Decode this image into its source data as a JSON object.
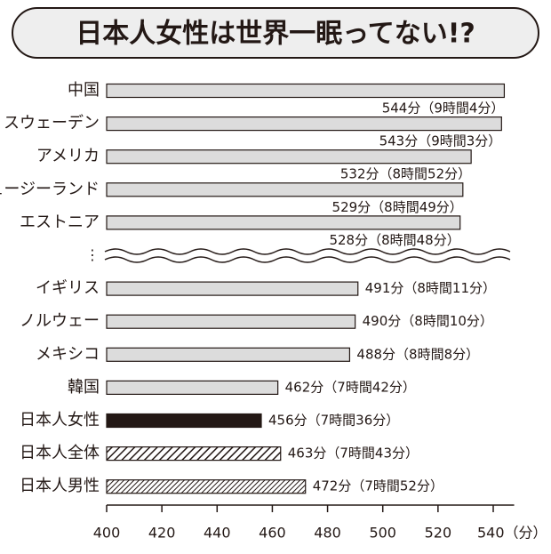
{
  "chart_data": {
    "type": "hbar",
    "title": "日本人女性は世界一眠ってない!?",
    "categories": [
      "中国",
      "スウェーデン",
      "アメリカ",
      "ニュージーランド",
      "エストニア",
      "⋮",
      "イギリス",
      "ノルウェー",
      "メキシコ",
      "韓国",
      "日本人女性",
      "日本人全体",
      "日本人男性"
    ],
    "values": [
      544,
      543,
      532,
      529,
      528,
      null,
      491,
      490,
      488,
      462,
      456,
      463,
      472
    ],
    "value_labels": [
      "544分（9時間4分）",
      "543分（9時間3分）",
      "532分（8時間52分）",
      "529分（8時間49分）",
      "528分（8時間48分）",
      null,
      "491分（8時間11分）",
      "490分（8時間10分）",
      "488分（8時間8分）",
      "462分（7時間42分）",
      "456分（7時間36分）",
      "463分（7時間43分）",
      "472分（7時間52分）"
    ],
    "colors": [
      "#dcdcdc",
      "#dcdcdc",
      "#dcdcdc",
      "#dcdcdc",
      "#dcdcdc",
      null,
      "#dcdcdc",
      "#dcdcdc",
      "#dcdcdc",
      "#dcdcdc",
      "#231815",
      "hatch-wide",
      "hatch-narrow"
    ],
    "xlim": [
      400,
      545
    ],
    "xticks": [
      400,
      420,
      440,
      460,
      480,
      500,
      520,
      {
        "value": 540,
        "label": "540（分）"
      }
    ]
  }
}
